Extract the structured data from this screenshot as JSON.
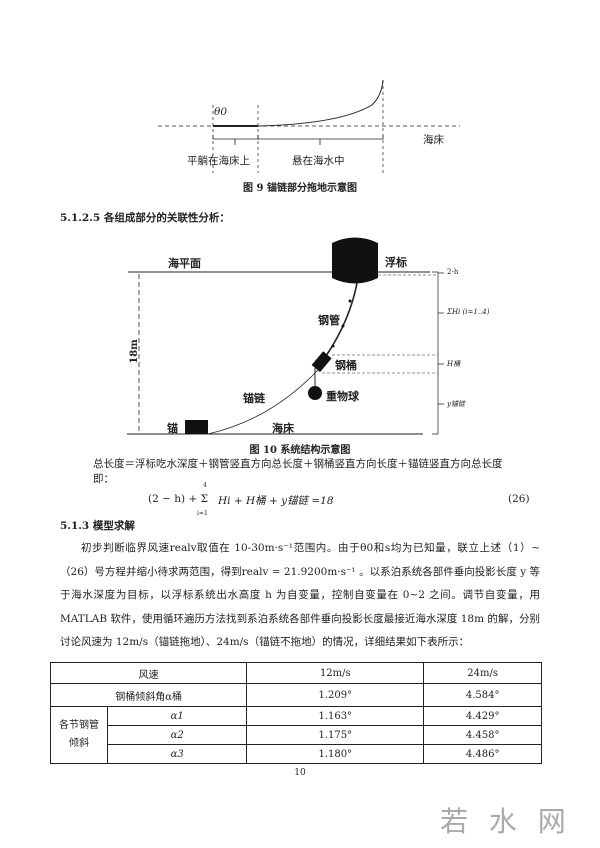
{
  "figure9": {
    "theta_label": "θ0",
    "lying_label": "平躺在海床上",
    "suspended_label": "悬在海水中",
    "seabed_label": "海床",
    "caption": "图 9 锚链部分拖地示意图"
  },
  "section_5125": "5.1.2.5 各组成部分的关联性分析：",
  "figure10": {
    "sea_surface": "海平面",
    "buoy": "浮标",
    "steel_pipe": "钢管",
    "steel_barrel": "钢桶",
    "weight_ball": "重物球",
    "anchor_chain": "锚链",
    "anchor": "锚",
    "seabed": "海床",
    "depth": "18m",
    "right_labels": [
      "2-h",
      "ΣHi (i=1..4)",
      "H桶",
      "y锚链"
    ],
    "caption": "图 10 系统结构示意图"
  },
  "text1": "总长度＝浮标吃水深度＋钢管竖直方向总长度＋钢桶竖直方向长度＋锚链竖直方向总长度",
  "text2": "即：",
  "equation": {
    "lhs": "(2 − h) + Σ",
    "sum_top": "4",
    "sum_bottom": "i=1",
    "rest": "Hi + H桶 + y锚链 =18",
    "number": "(26)"
  },
  "section_513": "5.1.3 模型求解",
  "paragraph": "初步判断临界风速realv取值在 10-30m·s⁻¹范围内。由于θ0和s均为已知量，联立上述（1）~（26）号方程并缩小待求两范围，得到realv = 21.9200m·s⁻¹ 。以系泊系统各部件垂向投影长度 y 等于海水深度为目标，以浮标系统出水高度 h 为自变量，控制自变量在 0~2 之间。调节自变量，用 MATLAB 软件，使用循环遍历方法找到系泊系统各部件垂向投影长度最接近海水深度 18m 的解，分别讨论风速为 12m/s（锚链拖地）、24m/s（锚链不拖地）的情况，详细结果如下表所示：",
  "table": {
    "header": [
      "风速",
      "12m/s",
      "24m/s"
    ],
    "barrel_row": {
      "label": "钢桶倾斜角α桶",
      "values": [
        "1.209°",
        "4.584°"
      ]
    },
    "pipe_group_label": "各节钢管倾斜",
    "pipe_rows": [
      {
        "label": "α1",
        "values": [
          "1.163°",
          "4.429°"
        ]
      },
      {
        "label": "α2",
        "values": [
          "1.175°",
          "4.458°"
        ]
      },
      {
        "label": "α3",
        "values": [
          "1.180°",
          "4.486°"
        ]
      }
    ]
  },
  "page_number": "10",
  "watermark": "若 水 网"
}
